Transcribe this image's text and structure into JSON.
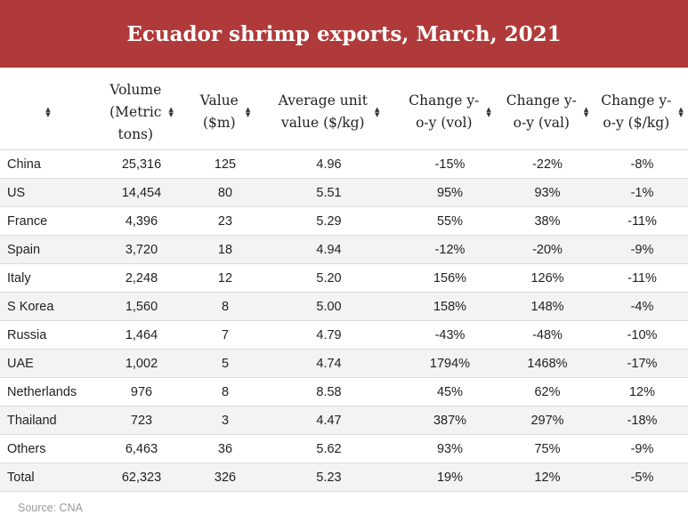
{
  "title": "Ecuador shrimp exports, March, 2021",
  "columns": [
    {
      "label": "",
      "lines": []
    },
    {
      "label": "Volume (Metric tons)",
      "lines": [
        "Volume",
        "(Metric",
        "tons)"
      ]
    },
    {
      "label": "Value ($m)",
      "lines": [
        "Value",
        "($m)"
      ]
    },
    {
      "label": "Average unit value ($/kg)",
      "lines": [
        "Average unit",
        "value ($/kg)"
      ]
    },
    {
      "label": "Change y-o-y (vol)",
      "lines": [
        "Change y-",
        "o-y (vol)"
      ]
    },
    {
      "label": "Change y-o-y (val)",
      "lines": [
        "Change y-",
        "o-y (val)"
      ]
    },
    {
      "label": "Change y-o-y ($/kg)",
      "lines": [
        "Change y-",
        "o-y ($/kg)"
      ]
    }
  ],
  "sort_icon": "sort-up-down-icon",
  "rows": [
    [
      "China",
      "25,316",
      "125",
      "4.96",
      "-15%",
      "-22%",
      "-8%"
    ],
    [
      "US",
      "14,454",
      "80",
      "5.51",
      "95%",
      "93%",
      "-1%"
    ],
    [
      "France",
      "4,396",
      "23",
      "5.29",
      "55%",
      "38%",
      "-11%"
    ],
    [
      "Spain",
      "3,720",
      "18",
      "4.94",
      "-12%",
      "-20%",
      "-9%"
    ],
    [
      "Italy",
      "2,248",
      "12",
      "5.20",
      "156%",
      "126%",
      "-11%"
    ],
    [
      "S Korea",
      "1,560",
      "8",
      "5.00",
      "158%",
      "148%",
      "-4%"
    ],
    [
      "Russia",
      "1,464",
      "7",
      "4.79",
      "-43%",
      "-48%",
      "-10%"
    ],
    [
      "UAE",
      "1,002",
      "5",
      "4.74",
      "1794%",
      "1468%",
      "-17%"
    ],
    [
      "Netherlands",
      "976",
      "8",
      "8.58",
      "45%",
      "62%",
      "12%"
    ],
    [
      "Thailand",
      "723",
      "3",
      "4.47",
      "387%",
      "297%",
      "-18%"
    ],
    [
      "Others",
      "6,463",
      "36",
      "5.62",
      "93%",
      "75%",
      "-9%"
    ],
    [
      "Total",
      "62,323",
      "326",
      "5.23",
      "19%",
      "12%",
      "-5%"
    ]
  ],
  "source": "Source: CNA",
  "colors": {
    "title_bar": "#b03a3a",
    "stripe": "#f3f3f3",
    "source_text": "#9a9a9a"
  }
}
